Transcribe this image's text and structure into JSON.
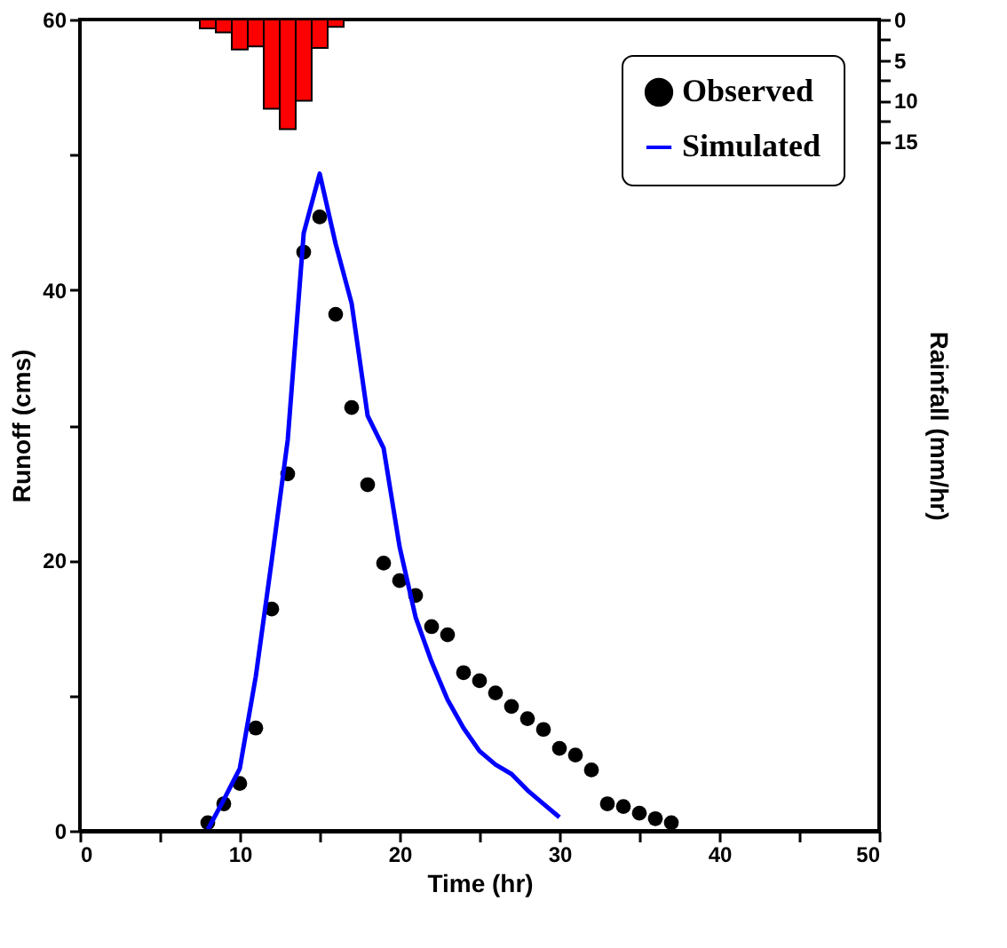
{
  "chart_data": {
    "type": "scatter",
    "xlabel": "Time (hr)",
    "ylabel": "Runoff (cms)",
    "y2label": "Rainfall (mm/hr)",
    "xlim": [
      0,
      50
    ],
    "xticks": [
      0,
      {
        "value": 5,
        "label": null
      },
      10,
      {
        "value": 15,
        "label": null
      },
      20,
      {
        "value": 25,
        "label": null
      },
      30,
      {
        "value": 35,
        "label": null
      },
      40,
      {
        "value": 45,
        "label": null
      },
      50
    ],
    "ylim": [
      0,
      60
    ],
    "yticks": [
      0,
      {
        "value": 10,
        "label": null
      },
      20,
      {
        "value": 30,
        "label": null
      },
      40,
      {
        "value": 50,
        "label": null
      },
      60
    ],
    "y2lim": [
      100,
      0
    ],
    "y2ticks": [
      0,
      {
        "value": 2.5,
        "label": null
      },
      5,
      {
        "value": 7.5,
        "label": null
      },
      10,
      {
        "value": 12.5,
        "label": null
      },
      15
    ],
    "grid": false,
    "legend": "top right",
    "series": [
      {
        "name": "Observed",
        "color": "#000000",
        "marker": "circle",
        "x": [
          8,
          9,
          10,
          11,
          12,
          13,
          14,
          15,
          16,
          17,
          18,
          19,
          20,
          21,
          22,
          23,
          24,
          25,
          26,
          27,
          28,
          29,
          30,
          31,
          32,
          33,
          34,
          35,
          36,
          37
        ],
        "values": [
          0.6,
          2.0,
          3.5,
          7.6,
          16.4,
          26.4,
          42.8,
          45.4,
          38.2,
          31.3,
          25.6,
          19.8,
          18.5,
          17.4,
          15.1,
          14.5,
          11.7,
          11.1,
          10.2,
          9.2,
          8.3,
          7.5,
          6.1,
          5.6,
          4.5,
          2.0,
          1.8,
          1.3,
          0.9,
          0.6
        ]
      },
      {
        "name": "Simulated",
        "type": "line",
        "color": "#0000ff",
        "line_style": "solid",
        "x": [
          8,
          9,
          10,
          11,
          12,
          13,
          14,
          15,
          16,
          17,
          18,
          19,
          20,
          21,
          22,
          23,
          24,
          25,
          26,
          27,
          28,
          29,
          30
        ],
        "values": [
          0.1,
          2.3,
          4.6,
          11.4,
          20.0,
          28.9,
          44.2,
          48.6,
          43.4,
          39.0,
          30.7,
          28.3,
          21.0,
          15.8,
          12.5,
          9.7,
          7.6,
          5.9,
          4.9,
          4.2,
          3.0,
          2.0,
          1.0
        ]
      },
      {
        "type": "bar",
        "axis": "y2",
        "color": "#ff0000",
        "x": [
          8,
          9,
          10,
          11,
          12,
          13,
          14,
          15,
          16
        ],
        "values": [
          1.1,
          1.6,
          3.7,
          3.3,
          11.0,
          13.5,
          10.0,
          3.5,
          0.9
        ]
      }
    ]
  }
}
